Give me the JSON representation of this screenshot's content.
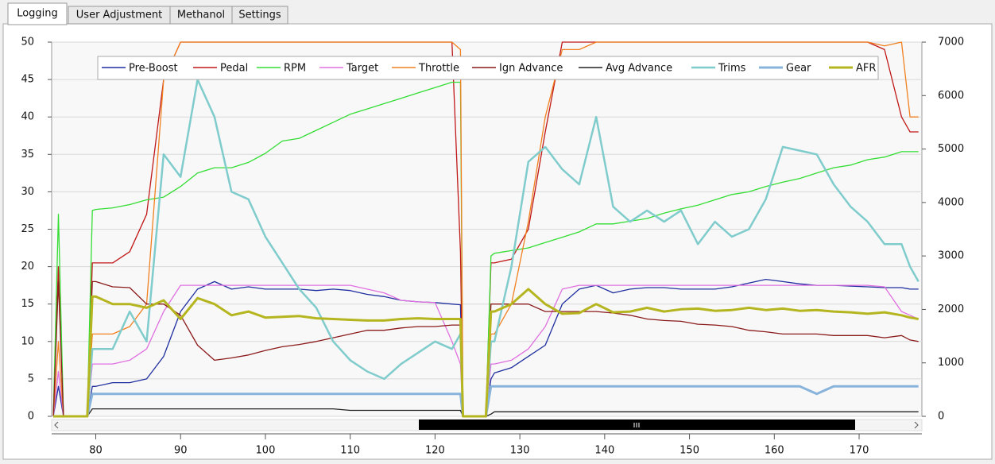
{
  "tabs": [
    "Logging",
    "User Adjustment",
    "Methanol",
    "Settings"
  ],
  "chart_data": {
    "type": "line",
    "x": [
      75,
      75.6,
      76.2,
      79,
      79.6,
      80,
      82,
      84,
      86,
      88,
      90,
      92,
      94,
      96,
      98,
      100,
      102,
      104,
      106,
      108,
      110,
      112,
      114,
      116,
      118,
      120,
      122,
      123,
      123.3,
      126,
      126.6,
      127,
      129,
      131,
      133,
      135,
      137,
      139,
      141,
      143,
      145,
      147,
      149,
      151,
      153,
      155,
      157,
      159,
      161,
      163,
      165,
      167,
      169,
      171,
      173,
      175,
      176,
      177
    ],
    "xlim": [
      74.8,
      177.4
    ],
    "xticks": [
      80,
      90,
      100,
      110,
      120,
      130,
      140,
      150,
      160,
      170
    ],
    "ylim": [
      0,
      50
    ],
    "yticks": [
      0,
      5,
      10,
      15,
      20,
      25,
      30,
      35,
      40,
      45,
      50
    ],
    "y2lim": [
      0,
      7000
    ],
    "y2ticks": [
      0,
      1000,
      2000,
      3000,
      4000,
      5000,
      6000,
      7000
    ],
    "grid": true,
    "legend": "top",
    "series": [
      {
        "name": "Pre-Boost",
        "color": "#1f2f9f",
        "values": [
          0,
          4,
          0,
          0,
          4,
          4,
          4.5,
          4.5,
          5,
          8,
          14,
          17,
          18,
          17,
          17.3,
          17,
          17,
          17,
          16.8,
          17,
          16.8,
          16.3,
          16,
          15.5,
          15.3,
          15.2,
          15,
          14.9,
          0,
          0,
          5,
          5.8,
          6.5,
          8,
          9.5,
          15,
          17,
          17.5,
          16.5,
          17,
          17.2,
          17.2,
          17,
          17,
          17,
          17.3,
          17.8,
          18.3,
          18,
          17.7,
          17.5,
          17.5,
          17.4,
          17.3,
          17.2,
          17.2,
          17,
          17
        ]
      },
      {
        "name": "Pedal",
        "color": "#c01818",
        "values": [
          0,
          20,
          0,
          0,
          20.5,
          20.5,
          20.5,
          22,
          27,
          45,
          50,
          50,
          50,
          50,
          50,
          50,
          50,
          50,
          50,
          50,
          50,
          50,
          50,
          50,
          50,
          50,
          50,
          22,
          0,
          0,
          20.5,
          20.5,
          21,
          25,
          38,
          50,
          50,
          50,
          50,
          50,
          50,
          50,
          50,
          50,
          50,
          50,
          50,
          50,
          50,
          50,
          50,
          50,
          50,
          50,
          49,
          40,
          38,
          38
        ]
      },
      {
        "name": "RPM",
        "color": "#33dd33",
        "axis": "y2",
        "values": [
          0,
          3780,
          0,
          0,
          3850,
          3870,
          3900,
          3960,
          4050,
          4100,
          4300,
          4550,
          4650,
          4650,
          4750,
          4920,
          5150,
          5200,
          5350,
          5500,
          5650,
          5750,
          5850,
          5950,
          6050,
          6150,
          6250,
          6250,
          0,
          0,
          3000,
          3050,
          3100,
          3150,
          3250,
          3350,
          3450,
          3600,
          3600,
          3650,
          3700,
          3800,
          3880,
          3950,
          4050,
          4150,
          4200,
          4300,
          4380,
          4450,
          4550,
          4650,
          4700,
          4800,
          4850,
          4950,
          4950,
          4950
        ]
      },
      {
        "name": "Target",
        "color": "#e070e0",
        "values": [
          0,
          6,
          0,
          0,
          7,
          7,
          7,
          7.5,
          9,
          14,
          17.5,
          17.5,
          17.5,
          17.5,
          17.5,
          17.5,
          17.5,
          17.5,
          17.5,
          17.5,
          17.5,
          17,
          16.5,
          15.5,
          15.3,
          15.2,
          10,
          7,
          0,
          0,
          7,
          7,
          7.5,
          9,
          12,
          17,
          17.5,
          17.5,
          17.5,
          17.5,
          17.5,
          17.5,
          17.5,
          17.5,
          17.5,
          17.5,
          17.5,
          17.5,
          17.5,
          17.5,
          17.5,
          17.5,
          17.5,
          17.5,
          17.3,
          14,
          13.5,
          13
        ]
      },
      {
        "name": "Throttle",
        "color": "#f08020",
        "values": [
          0,
          10,
          0,
          0,
          11,
          11,
          11,
          12,
          15,
          45,
          50,
          50,
          50,
          50,
          50,
          50,
          50,
          50,
          50,
          50,
          50,
          50,
          50,
          50,
          50,
          50,
          50,
          49,
          0,
          0,
          11,
          11,
          15,
          26,
          40,
          49,
          49,
          50,
          50,
          50,
          50,
          50,
          50,
          50,
          50,
          50,
          50,
          50,
          50,
          50,
          50,
          50,
          50,
          50,
          49.5,
          50,
          40,
          40
        ]
      },
      {
        "name": "Ign Advance",
        "color": "#8b1a1a",
        "values": [
          0,
          18,
          0,
          0,
          18,
          18,
          17.3,
          17.2,
          15,
          15,
          13.5,
          9.5,
          7.5,
          7.8,
          8.2,
          8.8,
          9.3,
          9.6,
          10,
          10.5,
          11,
          11.5,
          11.5,
          11.8,
          12,
          12,
          12.2,
          12.2,
          0,
          0,
          15,
          15,
          15,
          15,
          14,
          14,
          14,
          14,
          13.8,
          13.5,
          13,
          12.8,
          12.7,
          12.3,
          12.2,
          12,
          11.5,
          11.3,
          11,
          11,
          11,
          10.8,
          10.8,
          10.8,
          10.5,
          10.8,
          10.2,
          10
        ]
      },
      {
        "name": "Avg Advance",
        "color": "#222222",
        "values": [
          0,
          0,
          0,
          0,
          1,
          1,
          1,
          1,
          1,
          1,
          1,
          1,
          1,
          1,
          1,
          1,
          1,
          1,
          1,
          1,
          0.8,
          0.8,
          0.8,
          0.8,
          0.8,
          0.8,
          0.8,
          0.8,
          0,
          0,
          0.3,
          0.6,
          0.6,
          0.6,
          0.6,
          0.6,
          0.6,
          0.6,
          0.6,
          0.6,
          0.6,
          0.6,
          0.6,
          0.6,
          0.6,
          0.6,
          0.6,
          0.6,
          0.6,
          0.6,
          0.6,
          0.6,
          0.6,
          0.6,
          0.6,
          0.6,
          0.6,
          0.6
        ]
      },
      {
        "name": "Trims",
        "color": "#80cccc",
        "values": [
          0,
          0,
          0,
          0,
          9,
          9,
          9,
          14,
          10,
          35,
          32,
          45,
          40,
          30,
          29,
          24,
          20.5,
          17,
          14.5,
          10,
          7.5,
          6,
          5,
          7,
          8.5,
          10,
          9,
          11,
          0,
          0,
          10,
          10,
          20,
          34,
          36,
          33,
          31,
          40,
          28,
          26,
          27.5,
          26,
          27.5,
          23,
          26,
          24,
          25,
          29,
          36,
          35.5,
          35,
          31,
          28,
          26,
          23,
          23,
          20,
          18
        ]
      },
      {
        "name": "Gear",
        "color": "#88b4dc",
        "values": [
          0,
          0,
          0,
          0,
          3,
          3,
          3,
          3,
          3,
          3,
          3,
          3,
          3,
          3,
          3,
          3,
          3,
          3,
          3,
          3,
          3,
          3,
          3,
          3,
          3,
          3,
          3,
          3,
          0,
          0,
          4,
          4,
          4,
          4,
          4,
          4,
          4,
          4,
          4,
          4,
          4,
          4,
          4,
          4,
          4,
          4,
          4,
          4,
          4,
          4,
          3,
          4,
          4,
          4,
          4,
          4,
          4,
          4
        ]
      },
      {
        "name": "AFR",
        "color": "#b5b520",
        "values": [
          0,
          0,
          0,
          0,
          16,
          16,
          15,
          15,
          14.5,
          15.5,
          13,
          15.8,
          15,
          13.5,
          14,
          13.2,
          13.3,
          13.4,
          13.1,
          13,
          12.9,
          12.8,
          12.8,
          13,
          13.1,
          13,
          13,
          13,
          0,
          0,
          14,
          14,
          15,
          17,
          15,
          13.7,
          13.8,
          15,
          13.9,
          14,
          14.5,
          14,
          14.3,
          14.4,
          14.1,
          14.2,
          14.5,
          14.2,
          14.4,
          14.1,
          14.2,
          14,
          13.9,
          13.7,
          13.9,
          13.5,
          13.2,
          13
        ]
      }
    ]
  }
}
